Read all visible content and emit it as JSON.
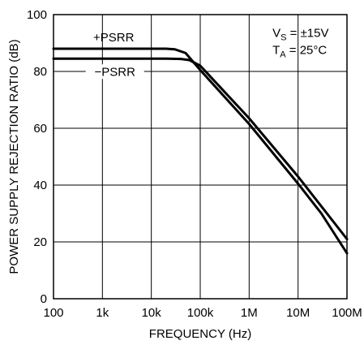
{
  "chart_data": {
    "type": "line",
    "xscale": "log",
    "xlim": [
      100,
      100000000
    ],
    "ylim": [
      0,
      100
    ],
    "xticks": [
      {
        "value": 100,
        "label": "100"
      },
      {
        "value": 1000,
        "label": "1k"
      },
      {
        "value": 10000,
        "label": "10k"
      },
      {
        "value": 100000,
        "label": "100k"
      },
      {
        "value": 1000000,
        "label": "1M"
      },
      {
        "value": 10000000,
        "label": "10M"
      },
      {
        "value": 100000000,
        "label": "100M"
      }
    ],
    "yticks": [
      {
        "value": 0,
        "label": "0"
      },
      {
        "value": 20,
        "label": "20"
      },
      {
        "value": 40,
        "label": "40"
      },
      {
        "value": 60,
        "label": "60"
      },
      {
        "value": 80,
        "label": "80"
      },
      {
        "value": 100,
        "label": "100"
      }
    ],
    "xlabel": "FREQUENCY (Hz)",
    "ylabel": "POWER SUPPLY REJECTION RATIO (dB)",
    "grid": true,
    "series": [
      {
        "name": "+PSRR",
        "x": [
          100,
          10000,
          20000,
          30000,
          50000,
          100000,
          1000000,
          10000000,
          30000000,
          100000000
        ],
        "y": [
          88,
          88,
          88,
          87.8,
          86.5,
          80.5,
          61.5,
          40.5,
          30,
          16
        ]
      },
      {
        "name": "−PSRR",
        "x": [
          100,
          20000,
          40000,
          60000,
          100000,
          1000000,
          10000000,
          100000000
        ],
        "y": [
          84.5,
          84.5,
          84.4,
          84,
          82,
          63.5,
          43,
          21
        ]
      }
    ],
    "annotations": {
      "vs_main": "V",
      "vs_sub": "S",
      "vs_rest": " = ±15V",
      "ta_main": "T",
      "ta_sub": "A",
      "ta_rest": " = 25°C"
    }
  }
}
